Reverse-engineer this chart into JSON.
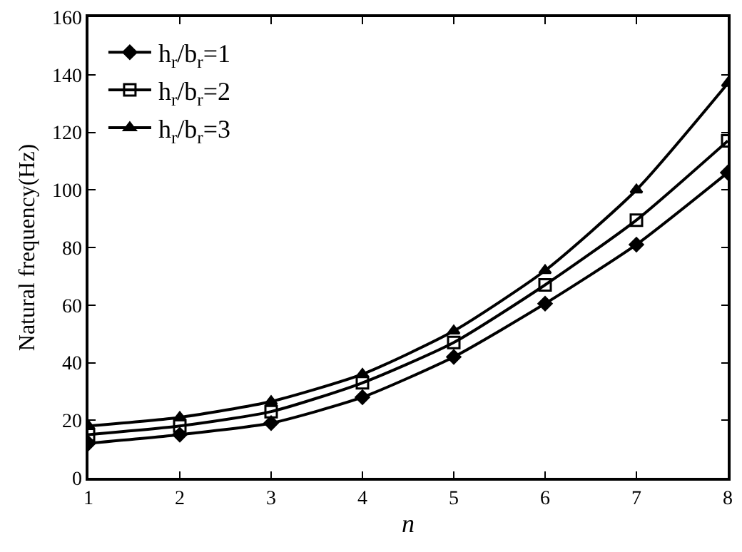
{
  "chart_data": {
    "type": "line",
    "xlabel": "n",
    "ylabel": "Natural frequency(Hz)",
    "x": [
      1,
      2,
      3,
      4,
      5,
      6,
      7,
      8
    ],
    "series": [
      {
        "name": "h$_{r}$/b$_{r}$=1",
        "color": "#000000",
        "marker": "diamond",
        "values": [
          12,
          15,
          19,
          28,
          42,
          60.5,
          81,
          106
        ]
      },
      {
        "name": "h$_{r}$/b$_{r}$=2",
        "color": "#000000",
        "marker": "square",
        "values": [
          15,
          18,
          23,
          33,
          47,
          67,
          89.5,
          117
        ]
      },
      {
        "name": "h$_{r}$/b$_{r}$=3",
        "color": "#000000",
        "marker": "triangle",
        "values": [
          18,
          21,
          26.5,
          36,
          51,
          72,
          100,
          137
        ]
      }
    ],
    "xlim": [
      1,
      8
    ],
    "xticks": [
      1,
      2,
      3,
      4,
      5,
      6,
      7,
      8
    ],
    "ylim": [
      0,
      160
    ],
    "yticks": [
      0,
      20,
      40,
      60,
      80,
      100,
      120,
      140,
      160
    ],
    "grid": false,
    "legend": "top left",
    "line_style": "solid"
  }
}
